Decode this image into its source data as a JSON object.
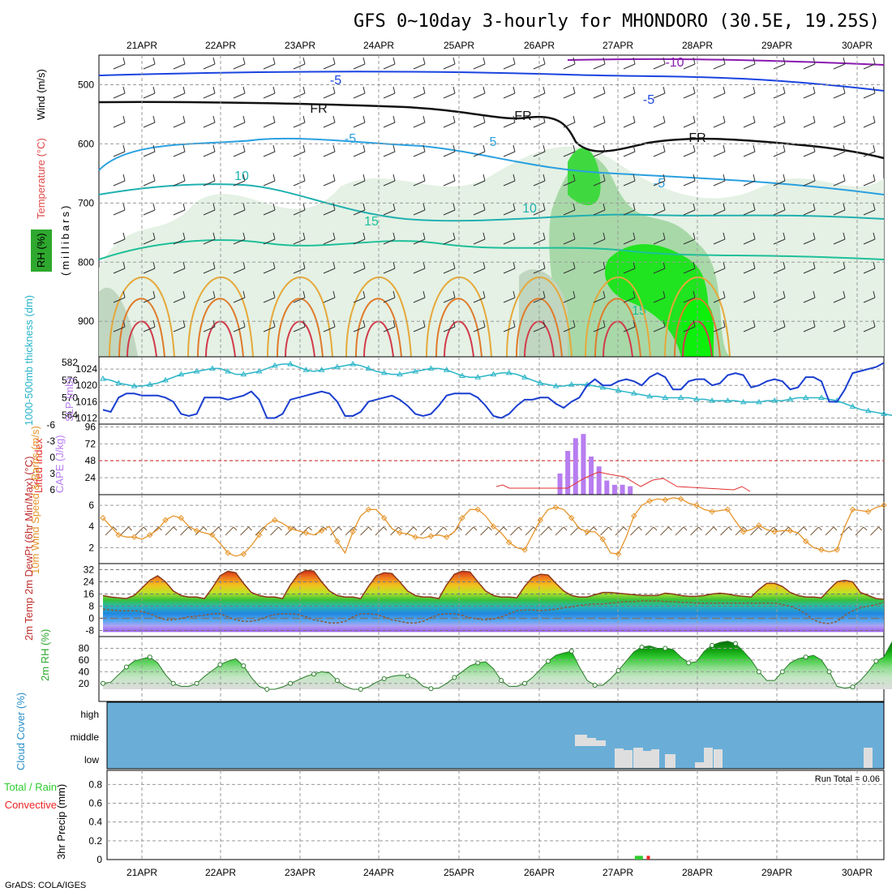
{
  "header": {
    "title": "GFS 0~10day 3-hourly for MHONDORO (30.5E, 19.25S)",
    "credit": "GrADS: COLA/IGES"
  },
  "colors": {
    "frame": "#000000",
    "grid": "#9a9a9a",
    "thickness": "#2ab5c8",
    "slp": "#1a3ed0",
    "cape": "#b77df0",
    "lifted_index": "#e23030",
    "wind_speed": "#e5952b",
    "rh_green": "#2ec62e",
    "cloud_bg": "#6aaed8",
    "cloud_block": "#dedede",
    "rain_total": "#2ecc2e",
    "rain_convective": "#ee2222"
  },
  "chart_data": [
    {
      "panel": "upper_air",
      "type": "heatmap",
      "x_labels": [
        "21APR",
        "22APR",
        "23APR",
        "24APR",
        "25APR",
        "26APR",
        "27APR",
        "28APR",
        "29APR",
        "30APR"
      ],
      "y_ticks": [
        500,
        600,
        700,
        800,
        900
      ],
      "y_range": [
        450,
        960
      ],
      "ylabel_parts": [
        "RH (%)",
        "Temperature (°C)",
        "Wind (m/s)",
        "(millibars)"
      ],
      "contour_labels": [
        "-10",
        "-5",
        "-5",
        "FR",
        "FR",
        "FR",
        "-5",
        "-5",
        "10",
        "10",
        "15",
        "15",
        "5"
      ]
    },
    {
      "panel": "thickness_slp",
      "type": "line",
      "ylabel_left": "1000-500mb thickness (dm)",
      "ylabel_right": "SLP (mb)",
      "y_ticks_thickness": [
        564,
        570,
        576,
        582
      ],
      "y_ticks_slp": [
        1012,
        1016,
        1020,
        1024
      ],
      "series": [
        {
          "name": "1000-500mb thickness (dm)",
          "values": [
            576.5,
            576,
            575,
            574.5,
            574,
            574,
            574.5,
            575,
            576,
            577,
            578,
            578.5,
            579,
            579.5,
            580,
            580,
            579,
            578,
            578,
            578.5,
            579,
            580,
            581,
            581.5,
            581.5,
            580.5,
            579.5,
            579,
            579.5,
            580,
            580.5,
            581,
            581.5,
            581,
            580,
            579,
            578.5,
            578,
            578,
            578.5,
            579,
            579.5,
            580,
            580,
            579.5,
            578.5,
            577.5,
            577,
            577,
            577.5,
            578,
            578.5,
            578.5,
            578,
            577,
            576,
            575,
            574.5,
            574,
            574,
            574.5,
            574.5,
            574.5,
            574,
            573.5,
            573,
            572.5,
            572,
            571.5,
            571,
            570.5,
            570.5,
            570,
            570,
            570,
            570,
            569.5,
            569.5,
            569,
            569,
            569,
            569,
            568.5,
            568.5,
            568.5,
            569,
            569,
            569,
            569.5,
            570,
            570,
            570,
            570,
            569.5,
            569,
            568,
            567,
            566,
            565.5,
            565,
            564.5,
            564,
            563.5,
            563.5
          ]
        },
        {
          "name": "SLP (mb)",
          "values": [
            1014,
            1013.5,
            1017,
            1018,
            1018,
            1017.5,
            1017.5,
            1017.5,
            1017,
            1016,
            1013,
            1012.5,
            1013,
            1017,
            1017,
            1017,
            1016.5,
            1017,
            1017.5,
            1018.5,
            1016.5,
            1012,
            1012,
            1013,
            1016.5,
            1017,
            1017.5,
            1018,
            1018.5,
            1018,
            1016,
            1012.5,
            1012.5,
            1013.5,
            1016,
            1016.5,
            1017,
            1017.5,
            1016.5,
            1015,
            1013,
            1012.5,
            1013,
            1015,
            1017.5,
            1018,
            1018,
            1018,
            1017,
            1015,
            1012.5,
            1012,
            1013,
            1015,
            1016.5,
            1016.5,
            1017,
            1017,
            1015.5,
            1014.5,
            1016,
            1017,
            1020,
            1021.5,
            1020,
            1020,
            1021,
            1021.5,
            1021,
            1020,
            1022,
            1023,
            1022,
            1019,
            1019,
            1021,
            1021.5,
            1021.5,
            1020,
            1020.5,
            1022.5,
            1023,
            1022.5,
            1019.5,
            1020,
            1021,
            1021.5,
            1021,
            1019,
            1019.5,
            1022,
            1022,
            1021,
            1016,
            1016,
            1019,
            1023,
            1023.5,
            1024,
            1024.5,
            1025.5
          ]
        }
      ]
    },
    {
      "panel": "cape_li",
      "type": "bar",
      "ylabel_left": "Lifted Index",
      "ylabel_right": "CAPE (J/kg)",
      "y_ticks_li": [
        "-6",
        "-3",
        "0",
        "3",
        "6"
      ],
      "y_ticks_cape": [
        24,
        48,
        72,
        96
      ],
      "x_index_start": 58,
      "series": [
        {
          "name": "CAPE (J/kg)",
          "values": [
            30,
            62,
            80,
            86,
            54,
            40,
            20,
            14,
            14,
            12,
            0,
            0,
            0
          ]
        }
      ]
    },
    {
      "panel": "wind10m",
      "type": "line",
      "ylabel": "10m Wind Speed & Barbs (m/s)",
      "y_ticks": [
        2,
        4,
        6
      ],
      "series": [
        {
          "name": "10m Wind Speed (m/s)",
          "values": [
            4.8,
            4,
            3.2,
            3,
            3,
            2.8,
            3.2,
            3.7,
            4.6,
            5,
            4.8,
            4,
            3.6,
            3.4,
            3.2,
            2.4,
            1.5,
            1.2,
            1.4,
            2.2,
            3.2,
            4.2,
            4.6,
            4.3,
            3.8,
            3.6,
            3.4,
            3.2,
            3.6,
            4,
            2.6,
            1.5,
            3.5,
            5,
            5.6,
            5.6,
            4.8,
            3.8,
            3.4,
            3.3,
            3,
            2.9,
            3.1,
            3.2,
            3,
            3.5,
            4.8,
            5.6,
            5.6,
            5,
            4,
            3.4,
            2.5,
            2,
            1.8,
            3.2,
            4.6,
            5.6,
            5.8,
            5.6,
            4.8,
            3.8,
            3.5,
            3.5,
            2.8,
            1.5,
            1.4,
            3,
            5,
            6,
            6.4,
            6.6,
            6.5,
            6.7,
            6.6,
            6.2,
            6,
            5.6,
            5.4,
            5.5,
            5.6,
            4.5,
            3.5,
            3.7,
            4.1,
            3.7,
            3.5,
            3.6,
            3.6,
            3.4,
            2.6,
            2,
            1.8,
            1.6,
            1.8,
            4,
            5.6,
            5.5,
            5.4,
            5.8,
            6
          ]
        }
      ]
    },
    {
      "panel": "temp2m",
      "type": "area",
      "ylabel": "2m Temp 2m DewPt (6hr Min/Max) (°C)",
      "y_ticks": [
        -8,
        0,
        8,
        16,
        24,
        32
      ],
      "series": [
        {
          "name": "2m Temp (°C)",
          "values": [
            15,
            14,
            13.5,
            13,
            15,
            20,
            25,
            28,
            24,
            18,
            15,
            14,
            14,
            13,
            20,
            28,
            31,
            30,
            23,
            17,
            15,
            14,
            14,
            13,
            22,
            29,
            31.5,
            31,
            24,
            18,
            15,
            14,
            14,
            13,
            21,
            28,
            30,
            29.5,
            24,
            18,
            15,
            14,
            14,
            13,
            22,
            29,
            31,
            30.5,
            24,
            18,
            15,
            14,
            14,
            13.5,
            21,
            27,
            29,
            28.5,
            23,
            18,
            15,
            14,
            14,
            15.5,
            17,
            17,
            16.5,
            16,
            15.5,
            15,
            15,
            15,
            16.5,
            16,
            15,
            14.5,
            14.5,
            15,
            16,
            16.5,
            16,
            15,
            14.5,
            14,
            19,
            23,
            23,
            21,
            17,
            15,
            14,
            14,
            13.5,
            19,
            24,
            25,
            24,
            17,
            15,
            13,
            12.5
          ]
        },
        {
          "name": "2m DewPt (°C)",
          "values": [
            6,
            5.5,
            5,
            5,
            5,
            4.5,
            3,
            1,
            -1,
            -1,
            0,
            1,
            1.5,
            2,
            3,
            3,
            1,
            -1,
            -2,
            -2,
            -1,
            1,
            2.5,
            3,
            3,
            2.5,
            1,
            -1,
            -2,
            -3,
            -3,
            -2,
            1,
            3,
            3,
            2.5,
            1,
            -1,
            -2,
            -3,
            -3,
            -2,
            0.5,
            2.5,
            3,
            3,
            2,
            0.5,
            -0.5,
            -1,
            -0.5,
            1,
            3,
            5,
            5.5,
            5.5,
            5,
            5.5,
            6,
            7,
            7.5,
            8.5,
            9,
            9.5,
            9.5,
            10,
            10.5,
            11,
            11,
            11.5,
            11.5,
            11.5,
            11,
            11,
            10.5,
            10.5,
            10,
            10,
            10,
            10,
            10,
            10,
            10,
            10,
            10,
            10,
            10,
            9,
            8,
            6,
            3,
            -1,
            -3,
            -3.5,
            -2,
            2,
            5,
            7,
            8,
            9,
            10.5
          ]
        }
      ]
    },
    {
      "panel": "rh2m",
      "type": "area",
      "ylabel": "2m RH (%)",
      "y_ticks": [
        20,
        40,
        60,
        80
      ],
      "series": [
        {
          "name": "2m RH (%)",
          "values": [
            20,
            22,
            35,
            48,
            58,
            62,
            65,
            55,
            35,
            20,
            15,
            15,
            20,
            32,
            42,
            52,
            58,
            62,
            50,
            30,
            15,
            10,
            10,
            14,
            20,
            26,
            32,
            36,
            40,
            38,
            25,
            15,
            10,
            10,
            14,
            22,
            28,
            32,
            34,
            33,
            27,
            15,
            11,
            12,
            20,
            30,
            40,
            50,
            55,
            57,
            45,
            25,
            15,
            15,
            20,
            30,
            44,
            58,
            68,
            72,
            75,
            48,
            25,
            17,
            17,
            28,
            42,
            58,
            74,
            82,
            84,
            80,
            80,
            78,
            65,
            55,
            57,
            75,
            85,
            90,
            92,
            88,
            75,
            60,
            40,
            25,
            25,
            40,
            55,
            62,
            65,
            68,
            60,
            40,
            15,
            12,
            14,
            25,
            40,
            58,
            65,
            90,
            70
          ]
        }
      ]
    },
    {
      "panel": "cloud_cover",
      "type": "bar",
      "ylabel": "Cloud Cover (%)",
      "y_ticks": [
        "high",
        "middle",
        "low"
      ]
    },
    {
      "panel": "precip",
      "type": "bar",
      "ylabel_left": "Total / Rain Convective",
      "ylabel": "3hr Precip (mm)",
      "y_ticks": [
        0,
        0.2,
        0.4,
        0.6,
        0.8
      ],
      "ylim": [
        0,
        0.95
      ],
      "run_total_label": "Run Total = 0.06",
      "series": [
        {
          "name": "Total / Rain",
          "x_index": 68,
          "value": 0.04
        },
        {
          "name": "Convective",
          "x_index": 69,
          "value": 0.04
        }
      ]
    }
  ]
}
